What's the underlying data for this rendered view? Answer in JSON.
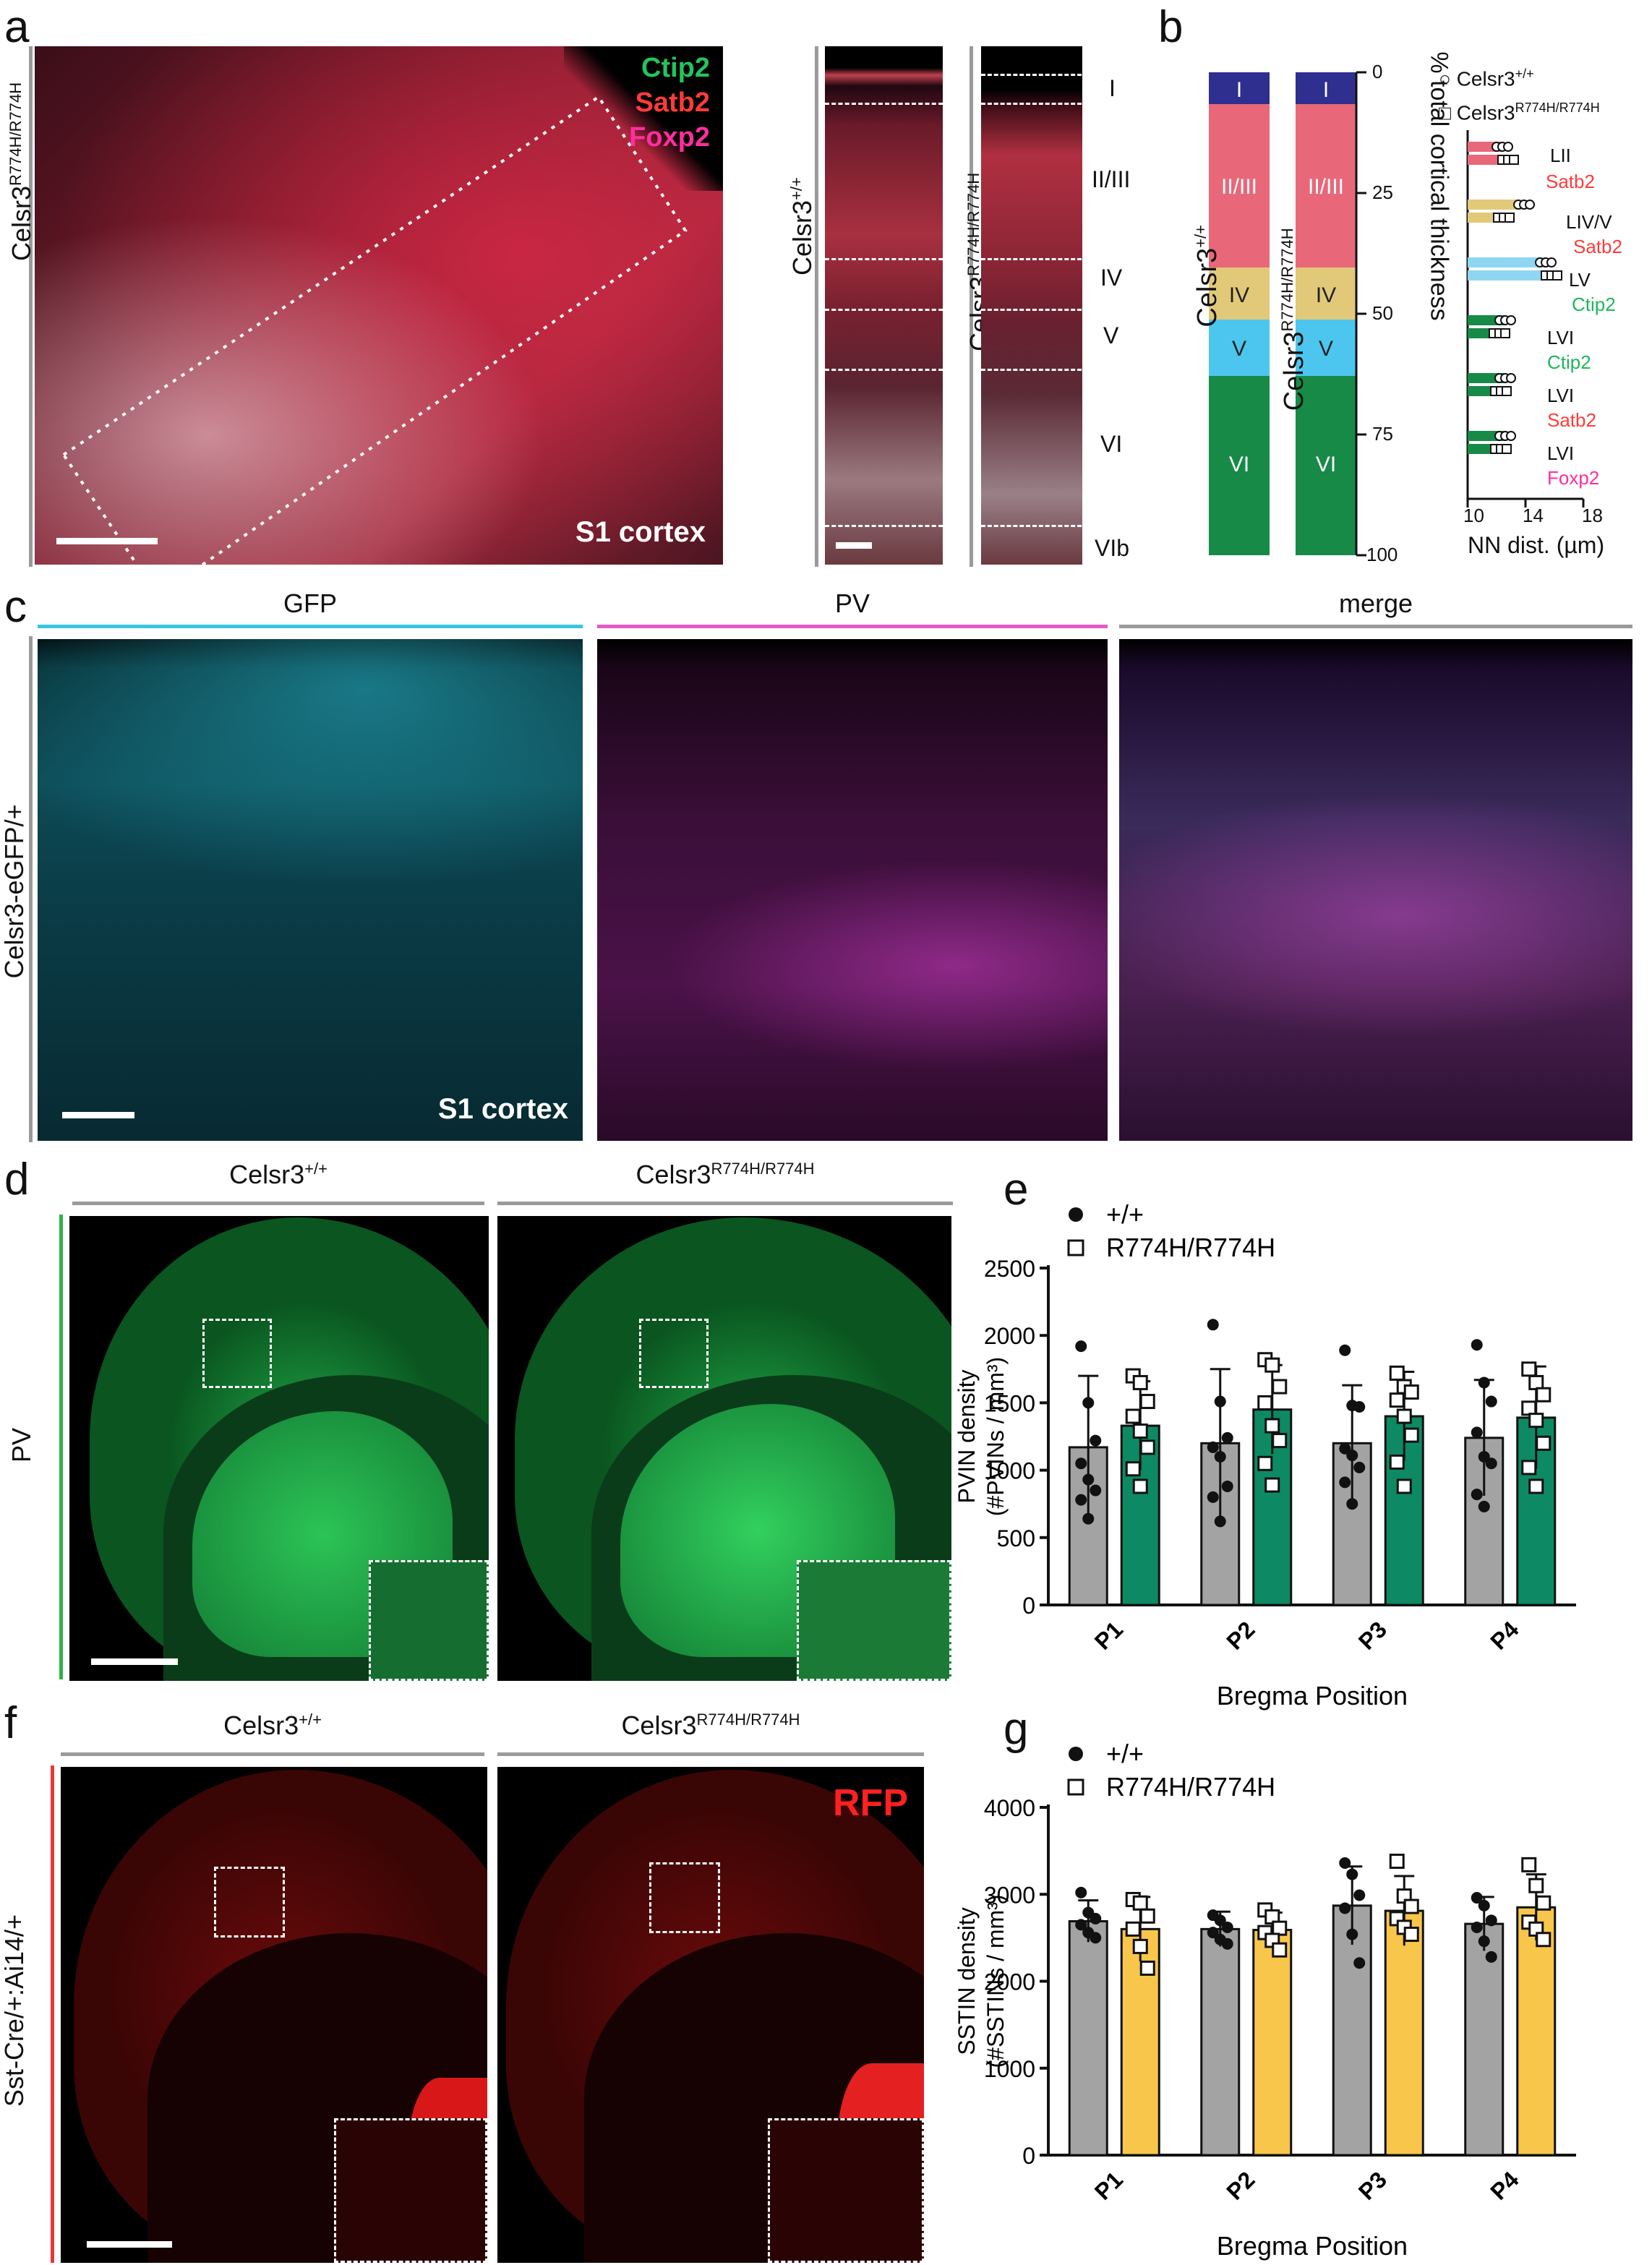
{
  "panel_labels": {
    "a": "a",
    "b": "b",
    "c": "c",
    "d": "d",
    "e": "e",
    "f": "f",
    "g": "g"
  },
  "panel_a": {
    "ylabel": "Celsr3",
    "ylabel_sup": "R774H/R774H",
    "markers": [
      {
        "text": "Ctip2",
        "color": "#22c55e"
      },
      {
        "text": "Satb2",
        "color": "#ff3b3b"
      },
      {
        "text": "Foxp2",
        "color": "#ff2ea0"
      }
    ],
    "region": "S1 cortex",
    "strip1_label": "Celsr3",
    "strip1_sup": "+/+",
    "strip2_label": "Celsr3",
    "strip2_sup": "R774H/R774H",
    "layers": [
      "I",
      "II/III",
      "IV",
      "V",
      "VI",
      "VIb"
    ]
  },
  "panel_b": {
    "bar1_label": "Celsr3",
    "bar1_sup": "+/+",
    "bar2_label": "Celsr3",
    "bar2_sup": "R774H/R774H",
    "axis_label": "% total cortical thickness",
    "ticks": [
      "0",
      "25",
      "50",
      "75",
      "100"
    ],
    "layers": [
      {
        "name": "I",
        "color": "#2e2f8f"
      },
      {
        "name": "II/III",
        "color": "#e8687a"
      },
      {
        "name": "IV",
        "color": "#e2c97a"
      },
      {
        "name": "V",
        "color": "#4cc6ee"
      },
      {
        "name": "VI",
        "color": "#178a47"
      }
    ],
    "legend": [
      {
        "marker": "circle",
        "text": "Celsr3",
        "sup": "+/+"
      },
      {
        "marker": "square",
        "text": "Celsr3",
        "sup": "R774H/R774H"
      }
    ],
    "nn_rows": [
      {
        "layer": "LII",
        "marker": "Satb2",
        "marker_color": "#ff3b3b",
        "bar_color": "#e8687a"
      },
      {
        "layer": "LIV/V",
        "marker": "Satb2",
        "marker_color": "#ff3b3b",
        "bar_color": "#e2c97a"
      },
      {
        "layer": "LV",
        "marker": "Ctip2",
        "marker_color": "#1fb65a",
        "bar_color": "#8fd6f2"
      },
      {
        "layer": "LVI",
        "marker": "Ctip2",
        "marker_color": "#1fb65a",
        "bar_color": "#178a47"
      },
      {
        "layer": "LVI",
        "marker": "Satb2",
        "marker_color": "#ff3b3b",
        "bar_color": "#178a47"
      },
      {
        "layer": "LVI",
        "marker": "Foxp2",
        "marker_color": "#ff2ea0",
        "bar_color": "#178a47"
      }
    ],
    "nn_xlabel": "NN dist. (µm)",
    "nn_xticks": [
      "10",
      "14",
      "18"
    ]
  },
  "panel_c": {
    "ylabel": "Celsr3-eGFP/+",
    "headers": [
      {
        "text": "GFP",
        "color": "#38c6e0"
      },
      {
        "text": "PV",
        "color": "#e35bc6"
      },
      {
        "text": "merge",
        "color": "#9a9a9a"
      }
    ],
    "region": "S1 cortex"
  },
  "panel_d": {
    "ylabel": "PV",
    "col1": "Celsr3",
    "col1_sup": "+/+",
    "col2": "Celsr3",
    "col2_sup": "R774H/R774H"
  },
  "panel_f": {
    "ylabel": "Sst-Cre/+:Ai14/+",
    "col1": "Celsr3",
    "col1_sup": "+/+",
    "col2": "Celsr3",
    "col2_sup": "R774H/R774H",
    "tag": "RFP"
  },
  "chart_data": [
    {
      "panel": "e",
      "type": "bar",
      "categories": [
        "P1",
        "P2",
        "P3",
        "P4"
      ],
      "xlabel": "Bregma Position",
      "ylabel_line1": "PVIN density",
      "ylabel_line2": "(#PVINs / mm³)",
      "ylim": [
        0,
        2500
      ],
      "yticks": [
        0,
        500,
        1000,
        1500,
        2000,
        2500
      ],
      "bar_colors": [
        "#a3a3a3",
        "#0d8a63"
      ],
      "legend": [
        "+/+",
        "R774H/R774H"
      ],
      "series": [
        {
          "name": "+/+",
          "values": [
            1170,
            1200,
            1200,
            1240
          ],
          "errors": [
            530,
            550,
            430,
            430
          ],
          "points": [
            [
              1920,
              1500,
              1220,
              1050,
              930,
              850,
              780,
              640
            ],
            [
              2080,
              1510,
              1240,
              1170,
              1100,
              880,
              800,
              620
            ],
            [
              1890,
              1480,
              1470,
              1160,
              1110,
              1020,
              910,
              750
            ],
            [
              1930,
              1650,
              1510,
              1280,
              1100,
              1050,
              820,
              730
            ]
          ]
        },
        {
          "name": "R774H/R774H",
          "values": [
            1330,
            1450,
            1400,
            1390
          ],
          "errors": [
            330,
            330,
            330,
            380
          ],
          "points": [
            [
              1700,
              1650,
              1510,
              1400,
              1290,
              1170,
              1010,
              880
            ],
            [
              1820,
              1780,
              1620,
              1500,
              1330,
              1220,
              1050,
              890
            ],
            [
              1720,
              1620,
              1580,
              1520,
              1400,
              1260,
              1060,
              880
            ],
            [
              1750,
              1650,
              1560,
              1460,
              1370,
              1200,
              1020,
              880
            ]
          ]
        }
      ]
    },
    {
      "panel": "g",
      "type": "bar",
      "categories": [
        "P1",
        "P2",
        "P3",
        "P4"
      ],
      "xlabel": "Bregma Position",
      "ylabel_line1": "SSTIN density",
      "ylabel_line2": "(#SSTINs / mm³)",
      "ylim": [
        0,
        4000
      ],
      "yticks": [
        0,
        1000,
        2000,
        3000,
        4000
      ],
      "bar_colors": [
        "#a3a3a3",
        "#f8c64a"
      ],
      "legend": [
        "+/+",
        "R774H/R774H"
      ],
      "series": [
        {
          "name": "+/+",
          "values": [
            2690,
            2600,
            2870,
            2660
          ],
          "errors": [
            240,
            200,
            450,
            310
          ],
          "points": [
            [
              3020,
              2790,
              2720,
              2650,
              2560,
              2500
            ],
            [
              2760,
              2700,
              2620,
              2560,
              2480,
              2430
            ],
            [
              3360,
              3230,
              2990,
              2840,
              2540,
              2210
            ],
            [
              2960,
              2870,
              2700,
              2620,
              2460,
              2280
            ]
          ]
        },
        {
          "name": "R774H/R774H",
          "values": [
            2600,
            2590,
            2810,
            2850
          ],
          "errors": [
            370,
            200,
            400,
            380
          ],
          "points": [
            [
              2940,
              2900,
              2750,
              2600,
              2400,
              2150
            ],
            [
              2820,
              2740,
              2610,
              2560,
              2470,
              2360
            ],
            [
              3380,
              2980,
              2860,
              2720,
              2620,
              2540
            ],
            [
              3340,
              3100,
              2900,
              2680,
              2600,
              2480
            ]
          ]
        }
      ]
    }
  ]
}
